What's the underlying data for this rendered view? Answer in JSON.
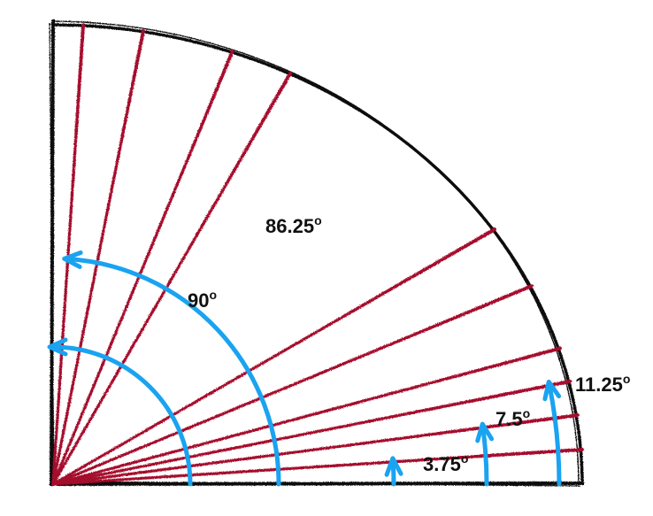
{
  "colors": {
    "outline": "#111111",
    "rays": "#a50e2d",
    "arrows": "#1aa3f0",
    "text": "#111111"
  },
  "rays": {
    "angles_deg": [
      3.75,
      7.5,
      11.25,
      15,
      22.5,
      30,
      60,
      67.5,
      78.75,
      86.25
    ]
  },
  "arcs": [
    {
      "label": "90",
      "angle_deg": 90
    },
    {
      "label": "86.25",
      "angle_deg": 86.25
    },
    {
      "label": "3.75",
      "angle_deg": 3.75
    },
    {
      "label": "7.5",
      "angle_deg": 7.5
    },
    {
      "label": "11.25",
      "angle_deg": 11.25
    }
  ],
  "degree_symbol": "o"
}
